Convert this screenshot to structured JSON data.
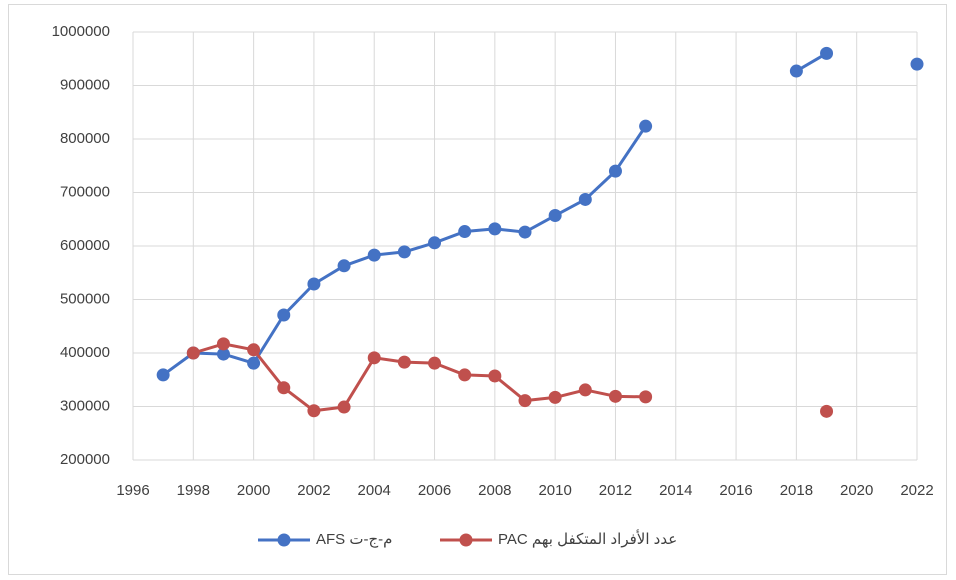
{
  "chart_data": {
    "type": "line",
    "x": [
      1997,
      1998,
      1999,
      2000,
      2001,
      2002,
      2003,
      2004,
      2005,
      2006,
      2007,
      2008,
      2009,
      2010,
      2011,
      2012,
      2013,
      2014,
      2015,
      2016,
      2017,
      2018,
      2019,
      2020,
      2021,
      2022
    ],
    "series": [
      {
        "name": "م-ج-ت AFS",
        "color": "#4472c4",
        "values": [
          359000,
          400000,
          398000,
          381000,
          471000,
          529000,
          563000,
          583000,
          589000,
          606000,
          627000,
          632000,
          626000,
          657000,
          687000,
          740000,
          824000,
          null,
          null,
          null,
          null,
          927000,
          960000,
          null,
          null,
          940000
        ]
      },
      {
        "name": "عدد الأفراد المتكفل بهم PAC",
        "color": "#c0504d",
        "values": [
          null,
          400000,
          417000,
          406000,
          335000,
          292000,
          299000,
          391000,
          383000,
          381000,
          359000,
          357000,
          311000,
          317000,
          331000,
          319000,
          318000,
          null,
          null,
          null,
          null,
          null,
          291000,
          null,
          null,
          null
        ]
      }
    ],
    "xlim": [
      1996,
      2022
    ],
    "xticks": [
      1996,
      1998,
      2000,
      2002,
      2004,
      2006,
      2008,
      2010,
      2012,
      2014,
      2016,
      2018,
      2020,
      2022
    ],
    "ylim": [
      200000,
      1000000
    ],
    "yticks": [
      200000,
      300000,
      400000,
      500000,
      600000,
      700000,
      800000,
      900000,
      1000000
    ],
    "grid": true,
    "legend": "bottom"
  }
}
